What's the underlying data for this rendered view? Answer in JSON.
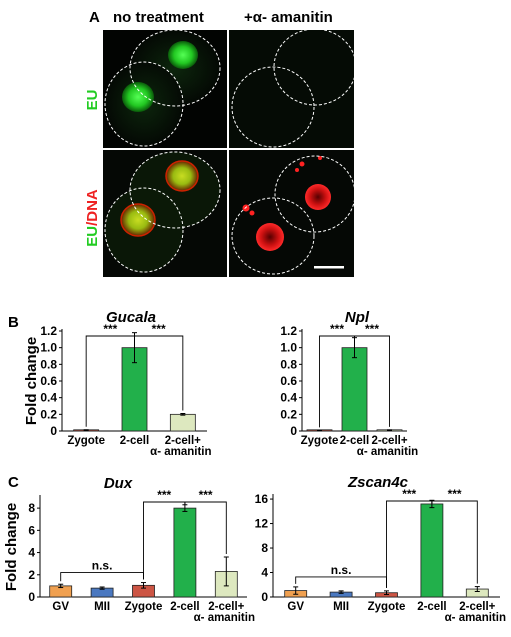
{
  "panel_a": {
    "label": "A",
    "col_titles": [
      "no treatment",
      "+α- amanitin"
    ],
    "row_labels": [
      {
        "parts": [
          {
            "text": "EU",
            "color": "#22cc22"
          }
        ]
      },
      {
        "parts": [
          {
            "text": "EU",
            "color": "#22cc22"
          },
          {
            "text": "/DNA",
            "color": "#ee2222"
          }
        ]
      }
    ]
  },
  "panel_b": {
    "label": "B"
  },
  "panel_c": {
    "label": "C"
  },
  "ylabel": "Fold change",
  "colors": {
    "zygote": "#cc5544",
    "two_cell": "#22b04b",
    "amanitin": "#dde8bf",
    "gv": "#f0a050",
    "mii": "#4a78c0",
    "eu_signal": "#33dd33",
    "dna_signal": "#ee2222"
  },
  "chart_data": [
    {
      "type": "bar",
      "id": "gucala",
      "title": "Gucala",
      "categories": [
        "Zygote",
        "2-cell",
        "2-cell+\nα- amanitin"
      ],
      "values": [
        0.01,
        1.0,
        0.2
      ],
      "errors": [
        0.005,
        0.18,
        0.01
      ],
      "ylim": [
        0,
        1.2
      ],
      "yticks": [
        0,
        0.2,
        0.4,
        0.6,
        0.8,
        1.0,
        1.2
      ],
      "ytick_labels": [
        "0",
        "0.2",
        "0.4",
        "0.6",
        "0.8",
        "1.0",
        "1.2"
      ],
      "ylabel": "Fold change",
      "color_keys": [
        "zygote",
        "two_cell",
        "amanitin"
      ],
      "sig": [
        {
          "from": 0,
          "to": 1,
          "label": "***"
        },
        {
          "from": 1,
          "to": 2,
          "label": "***"
        }
      ]
    },
    {
      "type": "bar",
      "id": "npl",
      "title": "Npl",
      "categories": [
        "Zygote",
        "2-cell",
        "2-cell+\nα- amanitin"
      ],
      "values": [
        0.005,
        1.0,
        0.01
      ],
      "errors": [
        0.002,
        0.12,
        0.004
      ],
      "ylim": [
        0,
        1.2
      ],
      "yticks": [
        0,
        0.2,
        0.4,
        0.6,
        0.8,
        1.0,
        1.2
      ],
      "ytick_labels": [
        "0",
        "0.2",
        "0.4",
        "0.6",
        "0.8",
        "1.0",
        "1.2"
      ],
      "ylabel": "",
      "color_keys": [
        "zygote",
        "two_cell",
        "amanitin"
      ],
      "sig": [
        {
          "from": 0,
          "to": 1,
          "label": "***"
        },
        {
          "from": 1,
          "to": 2,
          "label": "***"
        }
      ]
    },
    {
      "type": "bar",
      "id": "dux",
      "title": "Dux",
      "categories": [
        "GV",
        "MII",
        "Zygote",
        "2-cell",
        "2-cell+\nα- amanitin"
      ],
      "values": [
        1.0,
        0.8,
        1.05,
        8.0,
        2.3
      ],
      "errors": [
        0.15,
        0.1,
        0.25,
        0.3,
        1.3
      ],
      "ylim": [
        0,
        9
      ],
      "yticks": [
        0,
        2,
        4,
        6,
        8
      ],
      "ytick_labels": [
        "0",
        "2",
        "4",
        "6",
        "8"
      ],
      "ylabel": "Fold change",
      "color_keys": [
        "gv",
        "mii",
        "zygote",
        "two_cell",
        "amanitin"
      ],
      "sig": [
        {
          "from": 2,
          "to": 3,
          "label": "***"
        },
        {
          "from": 3,
          "to": 4,
          "label": "***"
        }
      ],
      "ns": {
        "from": 0,
        "to": 2,
        "label": "n.s."
      }
    },
    {
      "type": "bar",
      "id": "zscan4c",
      "title": "Zscan4c",
      "categories": [
        "GV",
        "MII",
        "Zygote",
        "2-cell",
        "2-cell+\nα- amanitin"
      ],
      "values": [
        1.05,
        0.8,
        0.7,
        15.2,
        1.3
      ],
      "errors": [
        0.6,
        0.2,
        0.3,
        0.6,
        0.4
      ],
      "ylim": [
        0,
        16.5
      ],
      "yticks": [
        0,
        4,
        8,
        12,
        16
      ],
      "ytick_labels": [
        "0",
        "4",
        "8",
        "12",
        "16"
      ],
      "ylabel": "",
      "color_keys": [
        "gv",
        "mii",
        "zygote",
        "two_cell",
        "amanitin"
      ],
      "sig": [
        {
          "from": 2,
          "to": 3,
          "label": "***"
        },
        {
          "from": 3,
          "to": 4,
          "label": "***"
        }
      ],
      "ns": {
        "from": 0,
        "to": 2,
        "label": "n.s."
      }
    }
  ]
}
